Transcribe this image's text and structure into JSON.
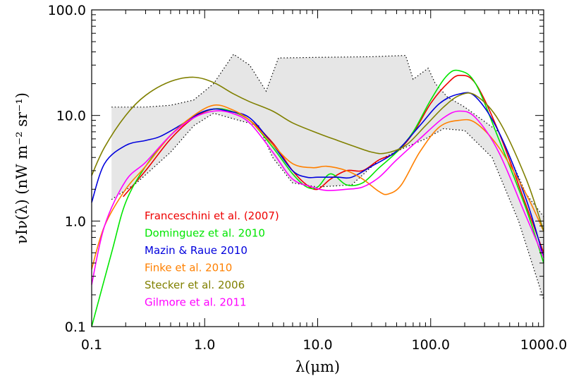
{
  "chart_data": {
    "type": "line",
    "xlabel": "λ(μm)",
    "ylabel": "νIν(λ) (nW m⁻² sr⁻¹)",
    "x_scale": "log",
    "y_scale": "log",
    "xlim": [
      0.1,
      1000.0
    ],
    "ylim": [
      0.1,
      100.0
    ],
    "x_ticks": [
      "0.1",
      "1.0",
      "10.0",
      "100.0",
      "1000.0"
    ],
    "y_ticks": [
      "0.1",
      "1.0",
      "10.0",
      "100.0"
    ],
    "legend_position": "lower-left",
    "band": {
      "color": "#e6e6e6",
      "upper": [
        [
          0.15,
          12
        ],
        [
          0.3,
          12
        ],
        [
          0.5,
          12.5
        ],
        [
          0.8,
          14
        ],
        [
          1.2,
          20
        ],
        [
          1.8,
          38
        ],
        [
          2.5,
          30
        ],
        [
          3.5,
          17
        ],
        [
          4.5,
          35
        ],
        [
          10,
          35.5
        ],
        [
          30,
          36
        ],
        [
          60,
          37
        ],
        [
          70,
          22
        ],
        [
          95,
          28
        ],
        [
          110,
          20
        ],
        [
          140,
          15
        ],
        [
          200,
          12
        ],
        [
          400,
          7
        ],
        [
          700,
          1.8
        ],
        [
          1000,
          1.1
        ]
      ],
      "lower": [
        [
          0.15,
          1.6
        ],
        [
          0.25,
          2.3
        ],
        [
          0.5,
          4.5
        ],
        [
          0.8,
          8
        ],
        [
          1.2,
          10.5
        ],
        [
          2,
          9
        ],
        [
          3,
          8
        ],
        [
          4,
          4
        ],
        [
          6,
          2.3
        ],
        [
          10,
          2.1
        ],
        [
          20,
          2.2
        ],
        [
          35,
          3.8
        ],
        [
          60,
          5
        ],
        [
          90,
          6
        ],
        [
          130,
          7.5
        ],
        [
          200,
          7.2
        ],
        [
          350,
          4
        ],
        [
          600,
          1
        ],
        [
          1000,
          0.18
        ]
      ]
    },
    "series": [
      {
        "name": "Franceschini et al. (2007)",
        "color": "#ee0000",
        "points": [
          [
            0.19,
            1.7
          ],
          [
            0.3,
            3
          ],
          [
            0.5,
            6
          ],
          [
            0.8,
            9.5
          ],
          [
            1.2,
            11.5
          ],
          [
            1.7,
            11
          ],
          [
            2.5,
            9
          ],
          [
            4,
            5.5
          ],
          [
            6,
            3
          ],
          [
            8,
            2.2
          ],
          [
            10,
            2
          ],
          [
            13,
            2.5
          ],
          [
            18,
            3
          ],
          [
            25,
            3
          ],
          [
            35,
            3.8
          ],
          [
            50,
            4.5
          ],
          [
            70,
            6.8
          ],
          [
            100,
            13
          ],
          [
            140,
            20
          ],
          [
            180,
            24
          ],
          [
            250,
            20
          ],
          [
            400,
            7
          ],
          [
            700,
            1.4
          ],
          [
            1000,
            0.5
          ]
        ]
      },
      {
        "name": "Dominguez et al. 2010",
        "color": "#00e600",
        "points": [
          [
            0.1,
            0.1
          ],
          [
            0.15,
            0.5
          ],
          [
            0.2,
            1.5
          ],
          [
            0.3,
            3.3
          ],
          [
            0.5,
            6.5
          ],
          [
            0.8,
            9.8
          ],
          [
            1.2,
            11.5
          ],
          [
            1.7,
            11
          ],
          [
            2.5,
            9
          ],
          [
            4,
            5
          ],
          [
            6,
            2.8
          ],
          [
            8,
            2.1
          ],
          [
            10,
            2.1
          ],
          [
            13,
            2.8
          ],
          [
            18,
            2.2
          ],
          [
            25,
            2.3
          ],
          [
            35,
            3.2
          ],
          [
            50,
            4.5
          ],
          [
            70,
            7
          ],
          [
            100,
            14
          ],
          [
            140,
            24
          ],
          [
            180,
            26.5
          ],
          [
            250,
            20
          ],
          [
            400,
            6
          ],
          [
            700,
            1.3
          ],
          [
            1000,
            0.4
          ]
        ]
      },
      {
        "name": "Mazin & Raue 2010",
        "color": "#0000dd",
        "points": [
          [
            0.1,
            1.5
          ],
          [
            0.13,
            3.5
          ],
          [
            0.2,
            5.2
          ],
          [
            0.3,
            5.8
          ],
          [
            0.4,
            6.3
          ],
          [
            0.6,
            8
          ],
          [
            0.9,
            10.5
          ],
          [
            1.2,
            11.5
          ],
          [
            1.6,
            11
          ],
          [
            2.5,
            9.5
          ],
          [
            4,
            5.3
          ],
          [
            6,
            3
          ],
          [
            8,
            2.6
          ],
          [
            10,
            2.6
          ],
          [
            15,
            2.6
          ],
          [
            20,
            2.6
          ],
          [
            30,
            3.3
          ],
          [
            50,
            4.6
          ],
          [
            80,
            8
          ],
          [
            120,
            13
          ],
          [
            180,
            16
          ],
          [
            250,
            15
          ],
          [
            400,
            7
          ],
          [
            700,
            1.6
          ],
          [
            1000,
            0.45
          ]
        ]
      },
      {
        "name": "Finke et al. 2010",
        "color": "#ff8000",
        "points": [
          [
            0.1,
            0.35
          ],
          [
            0.13,
            0.9
          ],
          [
            0.2,
            2
          ],
          [
            0.3,
            3.3
          ],
          [
            0.5,
            6.5
          ],
          [
            0.8,
            10
          ],
          [
            1.2,
            12.5
          ],
          [
            1.7,
            11.5
          ],
          [
            2.5,
            9
          ],
          [
            4,
            5.3
          ],
          [
            6,
            3.5
          ],
          [
            9,
            3.2
          ],
          [
            12,
            3.3
          ],
          [
            18,
            3
          ],
          [
            25,
            2.5
          ],
          [
            35,
            1.9
          ],
          [
            42,
            1.8
          ],
          [
            55,
            2.2
          ],
          [
            80,
            4.5
          ],
          [
            120,
            7.8
          ],
          [
            180,
            9
          ],
          [
            250,
            8.5
          ],
          [
            400,
            5
          ],
          [
            700,
            1.8
          ],
          [
            1000,
            0.8
          ]
        ]
      },
      {
        "name": "Stecker et al. 2006",
        "color": "#808000",
        "points": [
          [
            0.1,
            2.7
          ],
          [
            0.13,
            5
          ],
          [
            0.2,
            10
          ],
          [
            0.3,
            15.5
          ],
          [
            0.5,
            21
          ],
          [
            0.8,
            23
          ],
          [
            1.2,
            20.5
          ],
          [
            1.8,
            16
          ],
          [
            2.5,
            13.5
          ],
          [
            4,
            11
          ],
          [
            6,
            8.5
          ],
          [
            10,
            6.8
          ],
          [
            15,
            5.8
          ],
          [
            20,
            5.2
          ],
          [
            30,
            4.5
          ],
          [
            40,
            4.4
          ],
          [
            60,
            5.2
          ],
          [
            90,
            8
          ],
          [
            130,
            12
          ],
          [
            180,
            15.5
          ],
          [
            250,
            15.5
          ],
          [
            400,
            9
          ],
          [
            700,
            2.5
          ],
          [
            1000,
            0.8
          ]
        ]
      },
      {
        "name": "Gilmore et al. 2011",
        "color": "#ff00ff",
        "points": [
          [
            0.1,
            0.25
          ],
          [
            0.13,
            0.9
          ],
          [
            0.2,
            2.4
          ],
          [
            0.3,
            3.6
          ],
          [
            0.5,
            6.5
          ],
          [
            0.8,
            9.5
          ],
          [
            1.2,
            11
          ],
          [
            1.7,
            10.6
          ],
          [
            2.5,
            8.5
          ],
          [
            4,
            4.5
          ],
          [
            6,
            2.5
          ],
          [
            9,
            2.1
          ],
          [
            12,
            1.95
          ],
          [
            18,
            2
          ],
          [
            25,
            2.1
          ],
          [
            35,
            2.6
          ],
          [
            50,
            3.8
          ],
          [
            80,
            6
          ],
          [
            130,
            9.5
          ],
          [
            180,
            11
          ],
          [
            250,
            9.5
          ],
          [
            400,
            4.5
          ],
          [
            700,
            1.1
          ],
          [
            1000,
            0.45
          ]
        ]
      }
    ]
  }
}
